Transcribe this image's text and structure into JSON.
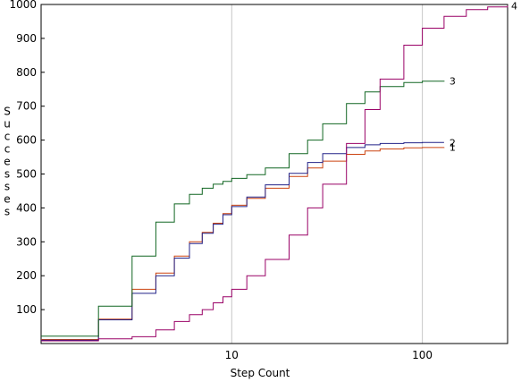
{
  "chart_data": {
    "type": "line",
    "xlabel": "Step Count",
    "ylabel": "Successes",
    "x_scale": "log",
    "xlim": [
      1,
      280
    ],
    "ylim": [
      0,
      1000
    ],
    "x_ticks": [
      10,
      100
    ],
    "x_tick_labels": [
      "10",
      "100"
    ],
    "y_ticks": [
      100,
      200,
      300,
      400,
      500,
      600,
      700,
      800,
      900,
      1000
    ],
    "y_tick_labels": [
      "100",
      "200",
      "300",
      "400",
      "500",
      "600",
      "700",
      "800",
      "900",
      "1000"
    ],
    "grid": true,
    "series": [
      {
        "name": "1",
        "color": "#cc4411",
        "x": [
          1,
          2,
          3,
          4,
          5,
          6,
          7,
          8,
          9,
          10,
          12,
          15,
          20,
          25,
          30,
          40,
          50,
          60,
          80,
          100,
          130
        ],
        "y": [
          12,
          72,
          160,
          208,
          258,
          300,
          328,
          355,
          383,
          408,
          428,
          458,
          493,
          518,
          538,
          558,
          568,
          574,
          577,
          578,
          579
        ]
      },
      {
        "name": "2",
        "color": "#222288",
        "x": [
          1,
          2,
          3,
          4,
          5,
          6,
          7,
          8,
          9,
          10,
          12,
          15,
          20,
          25,
          30,
          40,
          50,
          60,
          80,
          100,
          130
        ],
        "y": [
          10,
          70,
          148,
          200,
          252,
          295,
          325,
          352,
          380,
          404,
          432,
          468,
          502,
          534,
          560,
          578,
          586,
          590,
          592,
          593,
          593
        ]
      },
      {
        "name": "3",
        "color": "#116622",
        "x": [
          1,
          2,
          3,
          4,
          5,
          6,
          7,
          8,
          9,
          10,
          12,
          15,
          20,
          25,
          30,
          40,
          50,
          60,
          80,
          100,
          130
        ],
        "y": [
          22,
          110,
          258,
          358,
          412,
          440,
          458,
          470,
          478,
          487,
          498,
          518,
          560,
          600,
          648,
          708,
          742,
          758,
          770,
          774,
          775
        ]
      },
      {
        "name": "4",
        "color": "#990066",
        "x": [
          1,
          2,
          3,
          4,
          5,
          6,
          7,
          8,
          9,
          10,
          12,
          15,
          20,
          25,
          30,
          40,
          50,
          60,
          80,
          100,
          130,
          170,
          220,
          280
        ],
        "y": [
          8,
          14,
          20,
          40,
          65,
          85,
          100,
          120,
          138,
          160,
          200,
          248,
          320,
          400,
          470,
          590,
          690,
          780,
          880,
          930,
          965,
          985,
          993,
          996
        ]
      }
    ]
  }
}
